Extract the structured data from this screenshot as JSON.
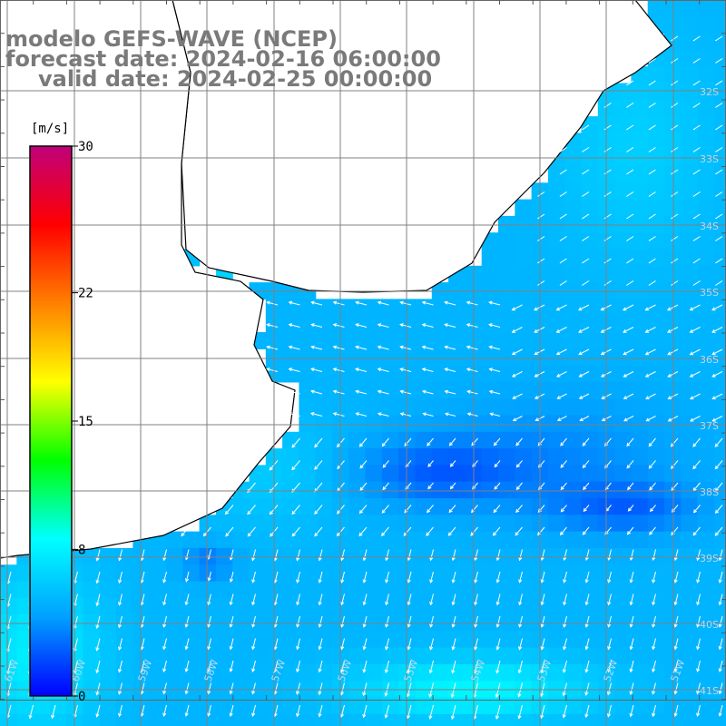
{
  "title": {
    "model": "modelo GEFS-WAVE (NCEP)",
    "forecast": "forecast date: 2024-02-16 06:00:00",
    "valid": "valid date: 2024-02-25 00:00:00"
  },
  "colorbar": {
    "unit": "[m/s]",
    "ticks": [
      "30",
      "22",
      "15",
      "8",
      "0"
    ],
    "tick_values": [
      30,
      22,
      15,
      8,
      0
    ],
    "colors": [
      "#0000ff",
      "#00a0ff",
      "#00ffff",
      "#00ff00",
      "#ffff00",
      "#ff8000",
      "#ff0000",
      "#c0007a"
    ]
  },
  "map": {
    "variable": "wind speed and direction",
    "lat_labels": [
      "32S",
      "33S",
      "34S",
      "35S",
      "36S",
      "37S",
      "38S",
      "39S",
      "40S",
      "41S"
    ],
    "lon_labels": [
      "61W",
      "60W",
      "59W",
      "58W",
      "57W",
      "56W",
      "55W",
      "54W",
      "53W",
      "52W",
      "51W"
    ],
    "colors": {
      "land": "#ffffff",
      "coast": "#000000",
      "grid": "#808080",
      "arrow": "#ffffff"
    }
  }
}
